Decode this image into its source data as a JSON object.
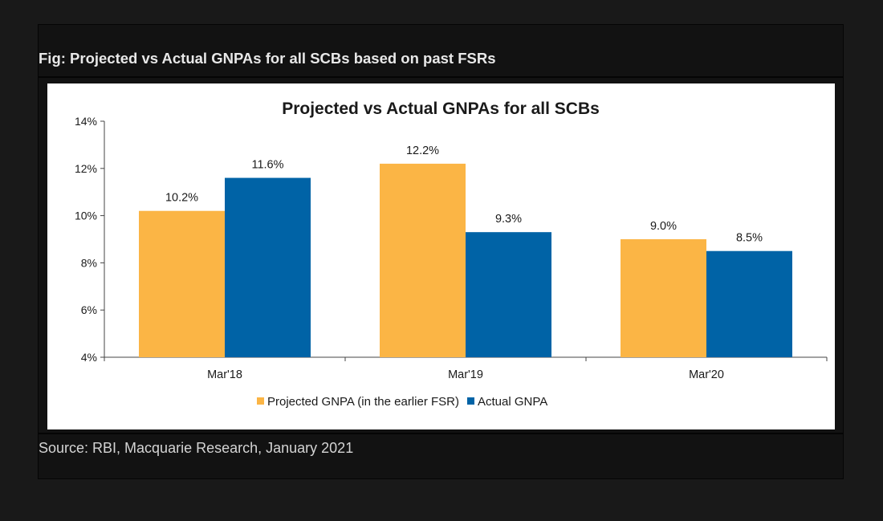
{
  "figure": {
    "caption": "Fig: Projected vs Actual GNPAs for all SCBs based on past FSRs",
    "source": "Source: RBI, Macquarie Research, January 2021"
  },
  "chart_data": {
    "type": "bar",
    "title": "Projected vs Actual GNPAs for all SCBs",
    "xlabel": "",
    "ylabel": "",
    "categories": [
      "Mar'18",
      "Mar'19",
      "Mar'20"
    ],
    "series": [
      {
        "name": "Projected GNPA (in the earlier FSR)",
        "values": [
          10.2,
          12.2,
          9.0
        ],
        "labels": [
          "10.2%",
          "12.2%",
          "9.0%"
        ],
        "color": "#fbb545"
      },
      {
        "name": "Actual GNPA",
        "values": [
          11.6,
          9.3,
          8.5
        ],
        "labels": [
          "11.6%",
          "9.3%",
          "8.5%"
        ],
        "color": "#0063a6"
      }
    ],
    "ylim": [
      4,
      14
    ],
    "yticks": [
      4,
      6,
      8,
      10,
      12,
      14
    ],
    "ytick_labels": [
      "4%",
      "6%",
      "8%",
      "10%",
      "12%",
      "14%"
    ],
    "grid": false,
    "legend_position": "bottom"
  }
}
